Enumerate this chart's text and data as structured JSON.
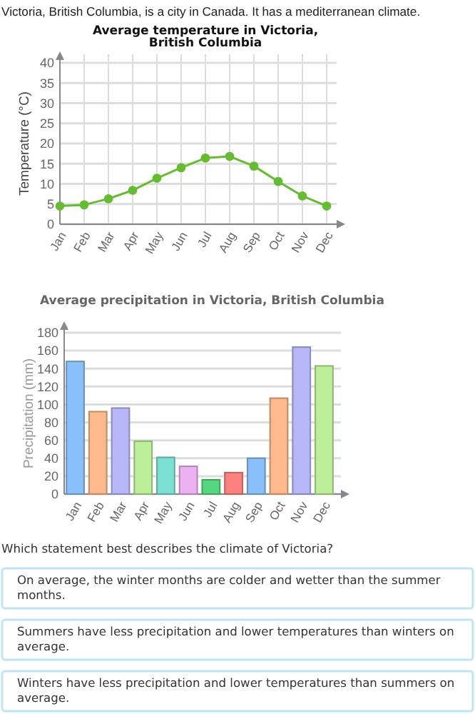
{
  "chart_data": [
    {
      "type": "line",
      "title": "Average temperature in Victoria, British Columbia",
      "ylabel": "Temperature (°C)",
      "annotations": [
        "Victoria, British Columbia, is a city in Canada. It has a mediterranean climate."
      ],
      "categories": [
        "Jan",
        "Feb",
        "Mar",
        "Apr",
        "May",
        "Jun",
        "Jul",
        "Aug",
        "Sep",
        "Oct",
        "Nov",
        "Dec"
      ],
      "series": [
        {
          "color": "#66bb33",
          "values": [
            4.5,
            4.8,
            6.3,
            8.4,
            11.4,
            14,
            16.4,
            16.8,
            14.4,
            10.6,
            7,
            4.5
          ]
        }
      ],
      "ylim": [
        0,
        40
      ],
      "yticks": [
        0,
        5,
        10,
        15,
        20,
        25,
        30,
        35,
        40
      ],
      "grid": true,
      "marker": "circle",
      "line_style": "solid"
    },
    {
      "type": "bar",
      "title": "Average precipitation in Victoria, British Columbia",
      "ylabel": "Precipitation (mm)",
      "annotations": [
        "Which statement best describes the climate of Victoria?",
        "On average, the winter months are colder and wetter than the summer months.",
        "Summers have less precipitation and lower temperatures than winters on average.",
        "Winters have less precipitation and lower temperatures than summers on average."
      ],
      "categories": [
        "Jan",
        "Feb",
        "Mar",
        "Apr",
        "May",
        "Jun",
        "Jul",
        "Aug",
        "Sep",
        "Oct",
        "Nov",
        "Dec"
      ],
      "values": [
        148,
        92,
        96,
        59,
        41,
        31,
        16,
        24,
        40,
        107,
        164,
        143
      ],
      "colors": [
        "#8bbff9",
        "#fdb88b",
        "#b7b7f7",
        "#bdef9a",
        "#7ddfd4",
        "#edb0f0",
        "#55d680",
        "#fc8080",
        "#8bbff9",
        "#fdb88b",
        "#b7b7f7",
        "#bdef9a"
      ],
      "ylim": [
        0,
        180
      ],
      "yticks": [
        0,
        20,
        40,
        60,
        80,
        100,
        120,
        140,
        160,
        180
      ],
      "grid": "y"
    }
  ]
}
